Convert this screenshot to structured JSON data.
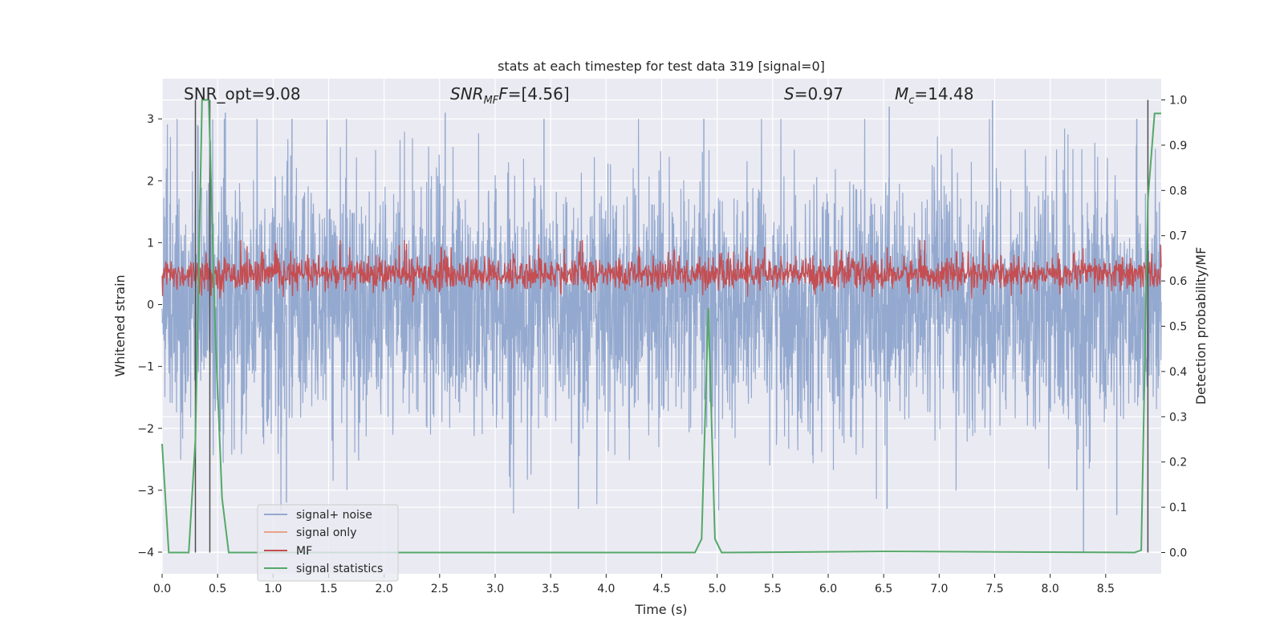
{
  "chart_data": {
    "type": "line",
    "title": "stats at each timestep for test data 319 [signal=0]",
    "xlabel": "Time (s)",
    "ylabel": "Whitened strain",
    "y2label": "Detection probability/MF",
    "xlim": [
      0.0,
      9.0
    ],
    "ylim": [
      -4.35,
      3.65
    ],
    "y2lim": [
      -0.047,
      1.047
    ],
    "grid": true,
    "legend_position": "lower-left",
    "x_ticks": [
      "0.0",
      "0.5",
      "1.0",
      "1.5",
      "2.0",
      "2.5",
      "3.0",
      "3.5",
      "4.0",
      "4.5",
      "5.0",
      "5.5",
      "6.0",
      "6.5",
      "7.0",
      "7.5",
      "8.0",
      "8.5"
    ],
    "y_ticks": [
      "3",
      "2",
      "1",
      "0",
      "−1",
      "−2",
      "−3",
      "−4"
    ],
    "y2_ticks": [
      "1.0",
      "0.9",
      "0.8",
      "0.7",
      "0.6",
      "0.5",
      "0.4",
      "0.3",
      "0.2",
      "0.1",
      "0.0"
    ],
    "annotations": {
      "snr_opt": "SNR_opt=9.08",
      "snr_mf": "=[4.56]",
      "s_val": "=0.97",
      "mc_val": "=14.48"
    },
    "series": [
      {
        "name": "signal+ noise",
        "color": "#94a9cf",
        "description_values": "noise, approx within [-4.0, 3.3], dense",
        "peaks_high": [
          [
            0.32,
            2.9
          ],
          [
            0.57,
            3.1
          ],
          [
            1.17,
            3.0
          ],
          [
            2.55,
            3.1
          ],
          [
            3.44,
            3.0
          ],
          [
            4.88,
            3.0
          ],
          [
            6.55,
            3.2
          ],
          [
            7.48,
            3.3
          ],
          [
            8.78,
            3.0
          ]
        ],
        "peaks_low": [
          [
            1.12,
            -3.2
          ],
          [
            3.75,
            -3.3
          ],
          [
            6.53,
            -3.3
          ],
          [
            8.24,
            -3.0
          ],
          [
            8.3,
            -4.0
          ],
          [
            8.6,
            -3.4
          ]
        ]
      },
      {
        "name": "signal only",
        "color": "#e8a388",
        "values": []
      },
      {
        "name": "MF",
        "color": "#c44e52",
        "description_values": "matched filter output on secondary axis, approx 0.55 to 0.69"
      },
      {
        "name": "signal statistics",
        "color": "#55a868",
        "x": [
          0.0,
          0.06,
          0.12,
          0.18,
          0.24,
          0.3,
          0.36,
          0.42,
          0.48,
          0.54,
          0.6,
          0.66,
          4.74,
          4.8,
          4.86,
          4.92,
          4.98,
          5.04,
          5.1,
          6.5,
          8.76,
          8.82,
          8.88,
          8.94,
          9.0
        ],
        "y": [
          0.24,
          0.0,
          0.0,
          0.0,
          0.0,
          0.25,
          1.0,
          1.0,
          0.48,
          0.12,
          0.0,
          0.0,
          0.0,
          0.0,
          0.03,
          0.54,
          0.03,
          0.0,
          0.0,
          0.0025,
          0.0,
          0.005,
          0.78,
          0.97,
          0.97
        ]
      }
    ],
    "vlines": [
      0.3,
      0.43,
      8.88
    ]
  },
  "legend": {
    "items": [
      {
        "label": "signal+ noise",
        "color": "#94a9cf"
      },
      {
        "label": "signal only",
        "color": "#e8a388"
      },
      {
        "label": "MF",
        "color": "#c44e52"
      },
      {
        "label": "signal statistics",
        "color": "#55a868"
      }
    ]
  }
}
